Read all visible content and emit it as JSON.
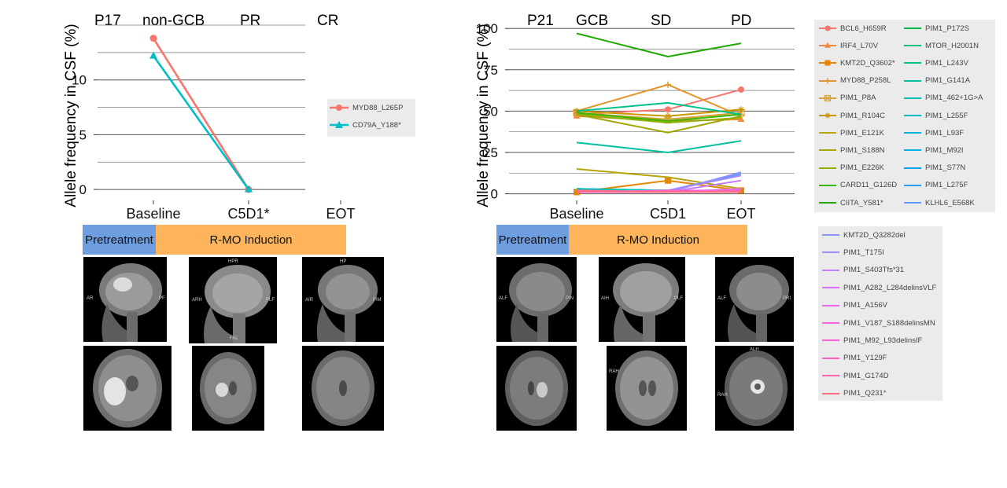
{
  "panels": [
    {
      "id": "P17",
      "patient": "P17",
      "subtype": "non-GCB",
      "responses": [
        "PR",
        "CR"
      ],
      "timepoints": [
        "Baseline",
        "C5D1*",
        "EOT"
      ],
      "y_axis_label": "Allele frequency in CSF (%)",
      "phases": [
        "Pretreatment",
        "R-MO Induction"
      ]
    },
    {
      "id": "P21",
      "patient": "P21",
      "subtype": "GCB",
      "responses": [
        "SD",
        "PD"
      ],
      "timepoints": [
        "Baseline",
        "C5D1",
        "EOT"
      ],
      "y_axis_label": "Allele frequency in CSF (%)",
      "phases": [
        "Pretreatment",
        "R-MO Induction"
      ]
    }
  ],
  "mri_labels": {
    "p17_sag": [
      "AR",
      "PF"
    ],
    "p17_sag2": [
      "HPR",
      "ARH",
      "PLF",
      "FAL"
    ],
    "p17_sag3": [
      "HP",
      "AIR",
      "PIM"
    ],
    "p21_sag": [
      "ALF",
      "PIN"
    ],
    "p21_sag2": [
      "AIH",
      "PLF"
    ],
    "p21_sag3": [
      "ALF",
      "PRI"
    ],
    "p21_ax2": [
      "RAH"
    ],
    "p21_ax3": [
      "ALH",
      "RAH"
    ]
  },
  "chart_data": [
    {
      "type": "line",
      "title": "P17 non-GCB",
      "xlabel": "",
      "ylabel": "Allele frequency in CSF (%)",
      "categories": [
        "Baseline",
        "C5D1*",
        "EOT"
      ],
      "ylim": [
        -1,
        15
      ],
      "yticks": [
        0,
        5,
        10
      ],
      "grid": true,
      "legend_position": "right",
      "series": [
        {
          "name": "MYD88_L265P",
          "color": "#f8766d",
          "marker": "circle",
          "values": [
            13.8,
            0,
            null
          ]
        },
        {
          "name": "CD79A_Y188*",
          "color": "#00bfc4",
          "marker": "triangle",
          "values": [
            12.2,
            0,
            null
          ]
        }
      ]
    },
    {
      "type": "line",
      "title": "P21 GCB",
      "xlabel": "",
      "ylabel": "Allele frequency in CSF (%)",
      "categories": [
        "Baseline",
        "C5D1",
        "EOT"
      ],
      "ylim": [
        -4,
        102
      ],
      "yticks": [
        0,
        25,
        50,
        75,
        100
      ],
      "grid": true,
      "legend_position": "right",
      "series": [
        {
          "name": "BCL6_H659R",
          "color": "#f8766d",
          "marker": "circle",
          "values": [
            48,
            51,
            63
          ]
        },
        {
          "name": "IRF4_L70V",
          "color": "#f08a3c",
          "marker": "triangle",
          "values": [
            47,
            44,
            45
          ]
        },
        {
          "name": "KMT2D_Q3602*",
          "color": "#e58700",
          "marker": "square",
          "values": [
            1,
            8,
            2
          ]
        },
        {
          "name": "MYD88_P258L",
          "color": "#e0962f",
          "marker": "plus",
          "values": [
            50,
            66,
            47
          ]
        },
        {
          "name": "PIM1_P8A",
          "color": "#d6a33a",
          "marker": "boxx",
          "values": [
            49,
            45,
            49
          ]
        },
        {
          "name": "PIM1_R104C",
          "color": "#c99800",
          "marker": "star",
          "values": [
            50,
            47,
            51
          ]
        },
        {
          "name": "PIM1_E121K",
          "color": "#b8a40a",
          "marker": "none",
          "values": [
            15,
            10,
            3
          ]
        },
        {
          "name": "PIM1_S188N",
          "color": "#a3a500",
          "marker": "none",
          "values": [
            48,
            37,
            47
          ]
        },
        {
          "name": "PIM1_E226K",
          "color": "#8fb000",
          "marker": "none",
          "values": [
            48,
            43,
            46
          ]
        },
        {
          "name": "CARD11_G126D",
          "color": "#39b600",
          "marker": "none",
          "values": [
            49,
            44,
            48
          ]
        },
        {
          "name": "CIITA_Y581*",
          "color": "#1fa800",
          "marker": "none",
          "values": [
            97,
            83,
            91
          ]
        },
        {
          "name": "PIM1_P172S",
          "color": "#00b84a",
          "marker": "none",
          "values": [
            3,
            2,
            1
          ]
        },
        {
          "name": "MTOR_H2001N",
          "color": "#00bf7d",
          "marker": "none",
          "values": [
            2,
            1,
            1
          ]
        },
        {
          "name": "PIM1_L243V",
          "color": "#00c08b",
          "marker": "none",
          "values": [
            50,
            55,
            48
          ]
        },
        {
          "name": "PIM1_G141A",
          "color": "#00c0a0",
          "marker": "none",
          "values": [
            31,
            25,
            32
          ]
        },
        {
          "name": "PIM1_462+1G>A",
          "color": "#00c1b2",
          "marker": "none",
          "values": [
            2,
            1,
            2
          ]
        },
        {
          "name": "PIM1_L255F",
          "color": "#00bfc4",
          "marker": "none",
          "values": [
            3,
            2,
            1
          ]
        },
        {
          "name": "PIM1_L93F",
          "color": "#00b8d4",
          "marker": "none",
          "values": [
            2,
            1,
            2
          ]
        },
        {
          "name": "PIM1_M92I",
          "color": "#00b0e0",
          "marker": "none",
          "values": [
            1,
            2,
            1
          ]
        },
        {
          "name": "PIM1_S77N",
          "color": "#00a5ec",
          "marker": "none",
          "values": [
            2,
            1,
            1
          ]
        },
        {
          "name": "PIM1_L275F",
          "color": "#2a9ff0",
          "marker": "none",
          "values": [
            1,
            1,
            2
          ]
        },
        {
          "name": "KLHL6_E568K",
          "color": "#619cff",
          "marker": "none",
          "values": [
            1,
            2,
            12
          ]
        },
        {
          "name": "KMT2D_Q3282del",
          "color": "#8b93ff",
          "marker": "none",
          "values": [
            2,
            1,
            13
          ]
        },
        {
          "name": "PIM1_T175I",
          "color": "#a58aff",
          "marker": "none",
          "values": [
            1,
            2,
            11
          ]
        },
        {
          "name": "PIM1_S403Tfs*31",
          "color": "#c77cff",
          "marker": "none",
          "values": [
            1,
            1,
            8
          ]
        },
        {
          "name": "PIM1_A282_L284delinsVLF",
          "color": "#dc71fa",
          "marker": "none",
          "values": [
            2,
            1,
            3
          ]
        },
        {
          "name": "PIM1_A156V",
          "color": "#ed68ed",
          "marker": "none",
          "values": [
            1,
            2,
            2
          ]
        },
        {
          "name": "PIM1_V187_S188delinsMN",
          "color": "#f564e3",
          "marker": "none",
          "values": [
            1,
            1,
            2
          ]
        },
        {
          "name": "PIM1_M92_L93delinsIF",
          "color": "#fb61d7",
          "marker": "none",
          "values": [
            2,
            1,
            1
          ]
        },
        {
          "name": "PIM1_Y129F",
          "color": "#ff61c3",
          "marker": "none",
          "values": [
            1,
            2,
            1
          ]
        },
        {
          "name": "PIM1_G174D",
          "color": "#ff65ae",
          "marker": "none",
          "values": [
            1,
            1,
            2
          ]
        },
        {
          "name": "PIM1_Q231*",
          "color": "#fc717f",
          "marker": "none",
          "values": [
            2,
            1,
            1
          ]
        }
      ]
    }
  ]
}
